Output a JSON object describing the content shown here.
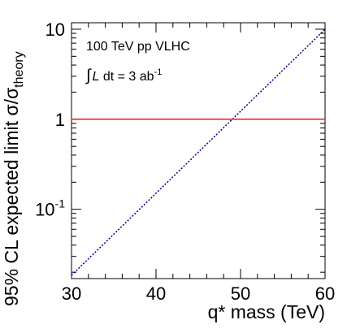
{
  "chart_data": {
    "type": "line",
    "xlabel": "q* mass (TeV)",
    "ylabel": {
      "main": "95% CL expected limit σ/σ",
      "subscript": "theory"
    },
    "xlim": [
      30,
      60
    ],
    "ylim": [
      0.017,
      11.8
    ],
    "yscale": "log",
    "x_ticks": [
      {
        "value": 30,
        "label": "30"
      },
      {
        "value": 40,
        "label": "40"
      },
      {
        "value": 50,
        "label": "50"
      },
      {
        "value": 60,
        "label": "60"
      }
    ],
    "y_ticks": [
      {
        "value": 0.1,
        "base": "10",
        "exponent": "-1"
      },
      {
        "value": 1,
        "base": "1",
        "exponent": ""
      },
      {
        "value": 10,
        "base": "10",
        "exponent": ""
      }
    ],
    "annotations": {
      "line1": "100 TeV pp VLHC",
      "line2_prefix": "∫",
      "line2_italic": "L",
      "line2_text": " dt = 3 ab",
      "line2_superscript": "-1"
    },
    "series": [
      {
        "style": "dotted",
        "color": "#00008b",
        "x": [
          30,
          60
        ],
        "y": [
          0.0185,
          10.0
        ]
      },
      {
        "style": "solid",
        "color": "#e8463c",
        "x": [
          30,
          60
        ],
        "y": [
          1,
          1
        ]
      }
    ],
    "grid": false,
    "legend": "none"
  }
}
